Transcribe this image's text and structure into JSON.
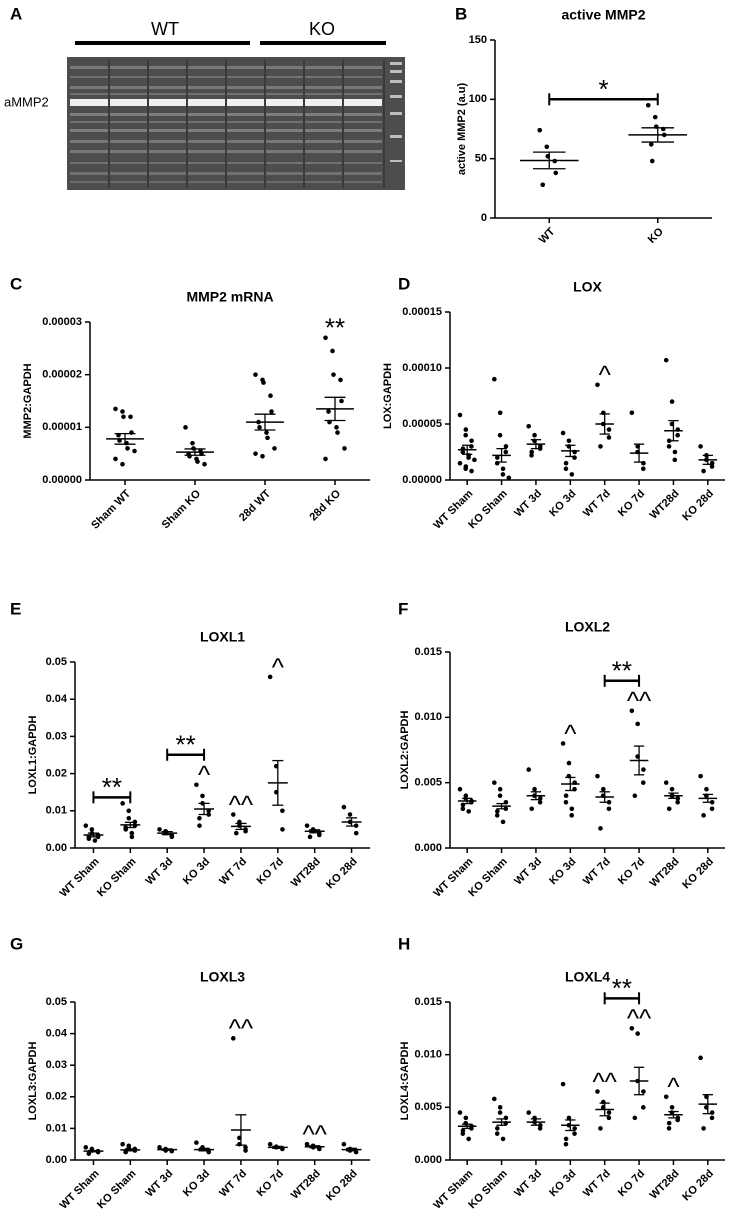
{
  "gel": {
    "panel": "A",
    "label": "aMMP2",
    "groups": [
      "WT",
      "KO"
    ]
  },
  "chart_data": [
    {
      "panel": "B",
      "type": "scatter",
      "title": "active MMP2",
      "ylabel": "active MMP2 (a.u)",
      "categories": [
        "WT",
        "KO"
      ],
      "points": [
        [
          74,
          60,
          52,
          48,
          38,
          28
        ],
        [
          95,
          85,
          77,
          75,
          70,
          62,
          48
        ]
      ],
      "means": [
        48.5,
        70
      ],
      "errors": [
        7,
        6
      ],
      "ylim": [
        0,
        150
      ],
      "yticks": [
        0,
        50,
        100,
        150
      ],
      "annotations": [
        {
          "text": "*",
          "categories": [
            "WT",
            "KO"
          ]
        }
      ]
    },
    {
      "panel": "C",
      "type": "scatter",
      "title": "MMP2 mRNA",
      "ylabel": "MMP2:GAPDH",
      "categories": [
        "Sham WT",
        "Sham KO",
        "28d WT",
        "28d KO"
      ],
      "points": [
        [
          1.35e-05,
          1.3e-05,
          1.2e-05,
          1.2e-05,
          9e-06,
          8.5e-06,
          7.5e-06,
          7e-06,
          6e-06,
          5.5e-06,
          4e-06,
          3e-06
        ],
        [
          1e-05,
          7e-06,
          6e-06,
          5.5e-06,
          5e-06,
          5e-06,
          4.5e-06,
          4e-06,
          3.5e-06,
          3e-06
        ],
        [
          2e-05,
          1.9e-05,
          1.85e-05,
          1.6e-05,
          1.3e-05,
          1.1e-05,
          1e-05,
          9e-06,
          8e-06,
          6e-06,
          5e-06,
          4.5e-06
        ],
        [
          2.7e-05,
          2.45e-05,
          2e-05,
          1.9e-05,
          1.5e-05,
          1.3e-05,
          1.1e-05,
          1e-05,
          9e-06,
          6e-06,
          4e-06
        ]
      ],
      "means": [
        7.8e-06,
        5.3e-06,
        1.1e-05,
        1.35e-05
      ],
      "errors": [
        1e-06,
        6e-07,
        1.5e-06,
        2.2e-06
      ],
      "ylim": [
        0,
        3e-05
      ],
      "yticks": [
        {
          "value": 0,
          "label": "0.00000"
        },
        1e-05,
        2e-05,
        3e-05
      ],
      "annotations": [
        {
          "text": "**",
          "categories": [
            "28d KO"
          ]
        }
      ]
    },
    {
      "panel": "D",
      "type": "scatter",
      "title": "LOX",
      "ylabel": "LOX:GAPDH",
      "categories": [
        "WT Sham",
        "KO Sham",
        "WT 3d",
        "KO 3d",
        "WT 7d",
        "KO 7d",
        "WT28d",
        "KO 28d"
      ],
      "points": [
        [
          5.8e-05,
          4.5e-05,
          4e-05,
          3.5e-05,
          3e-05,
          2.8e-05,
          2.5e-05,
          2.2e-05,
          2e-05,
          1.8e-05,
          1.5e-05,
          1.2e-05,
          1e-05,
          8e-06
        ],
        [
          9e-05,
          6e-05,
          4e-05,
          3e-05,
          2.5e-05,
          2e-05,
          1.5e-05,
          1e-05,
          5e-06,
          2e-06
        ],
        [
          4.8e-05,
          4e-05,
          3.5e-05,
          3e-05,
          2.8e-05,
          2.5e-05,
          2.2e-05
        ],
        [
          4.2e-05,
          3.5e-05,
          3e-05,
          2.5e-05,
          2e-05,
          1.5e-05,
          1e-05,
          5e-06
        ],
        [
          8.5e-05,
          6e-05,
          5e-05,
          4.5e-05,
          3.8e-05,
          3e-05
        ],
        [
          6e-05,
          3e-05,
          2.5e-05,
          1.5e-05,
          1e-05
        ],
        [
          0.000107,
          7e-05,
          5e-05,
          4.5e-05,
          4e-05,
          3.5e-05,
          3e-05,
          2.5e-05,
          1.8e-05
        ],
        [
          3e-05,
          2.2e-05,
          1.8e-05,
          1.5e-05,
          1.2e-05,
          8e-06
        ]
      ],
      "means": [
        2.7e-05,
        2.2e-05,
        3.2e-05,
        2.6e-05,
        5e-05,
        2.4e-05,
        4.4e-05,
        1.8e-05
      ],
      "errors": [
        4e-06,
        6e-06,
        4e-06,
        5e-06,
        9e-06,
        8e-06,
        9e-06,
        4e-06
      ],
      "ylim": [
        0,
        0.00015
      ],
      "yticks": [
        {
          "value": 0,
          "label": "0.00000"
        },
        5e-05,
        {
          "value": 0.0001,
          "label": "0.00010"
        },
        0.00015
      ],
      "annotations": [
        {
          "text": "^",
          "categories": [
            "WT 7d"
          ]
        }
      ]
    },
    {
      "panel": "E",
      "type": "scatter",
      "title": "LOXL1",
      "ylabel": "LOXL1:GAPDH",
      "categories": [
        "WT Sham",
        "KO Sham",
        "WT 3d",
        "KO 3d",
        "WT 7d",
        "KO 7d",
        "WT28d",
        "KO 28d"
      ],
      "points": [
        [
          0.006,
          0.005,
          0.004,
          0.0035,
          0.003,
          0.003,
          0.0025,
          0.002
        ],
        [
          0.012,
          0.01,
          0.008,
          0.007,
          0.006,
          0.0055,
          0.005,
          0.004,
          0.003
        ],
        [
          0.005,
          0.0045,
          0.004,
          0.0035,
          0.003
        ],
        [
          0.017,
          0.014,
          0.012,
          0.01,
          0.009,
          0.008,
          0.006
        ],
        [
          0.009,
          0.007,
          0.006,
          0.005,
          0.0045,
          0.004
        ],
        [
          0.046,
          0.022,
          0.015,
          0.01,
          0.005
        ],
        [
          0.006,
          0.005,
          0.0045,
          0.004,
          0.0035,
          0.003
        ],
        [
          0.011,
          0.009,
          0.007,
          0.006,
          0.004
        ]
      ],
      "means": [
        0.0035,
        0.0062,
        0.004,
        0.0105,
        0.0058,
        0.0175,
        0.0045,
        0.007
      ],
      "errors": [
        0.0005,
        0.0007,
        0.0004,
        0.0015,
        0.0008,
        0.006,
        0.0004,
        0.0011
      ],
      "ylim": [
        0,
        0.05
      ],
      "yticks": [
        {
          "value": 0,
          "label": "0.00"
        },
        0.01,
        0.02,
        0.03,
        0.04,
        0.05
      ],
      "annotations": [
        {
          "text": "^",
          "categories": [
            "KO 3d"
          ]
        },
        {
          "text": "^^",
          "categories": [
            "WT 7d"
          ]
        },
        {
          "text": "^",
          "categories": [
            "KO 7d"
          ]
        },
        {
          "text": "**",
          "categories": [
            "WT Sham",
            "KO Sham"
          ]
        },
        {
          "text": "**",
          "categories": [
            "WT 3d",
            "KO 3d"
          ]
        }
      ]
    },
    {
      "panel": "F",
      "type": "scatter",
      "title": "LOXL2",
      "ylabel": "LOXL2:GAPDH",
      "categories": [
        "WT Sham",
        "KO Sham",
        "WT 3d",
        "KO 3d",
        "WT 7d",
        "KO 7d",
        "WT28d",
        "KO 28d"
      ],
      "points": [
        [
          0.0045,
          0.004,
          0.0038,
          0.0036,
          0.0035,
          0.0033,
          0.003,
          0.0028
        ],
        [
          0.005,
          0.0045,
          0.004,
          0.0035,
          0.003,
          0.0028,
          0.0025,
          0.002
        ],
        [
          0.006,
          0.0045,
          0.004,
          0.0038,
          0.0035,
          0.003
        ],
        [
          0.008,
          0.0065,
          0.0055,
          0.005,
          0.0045,
          0.004,
          0.0035,
          0.003,
          0.0025
        ],
        [
          0.0055,
          0.0045,
          0.004,
          0.0035,
          0.003,
          0.0015
        ],
        [
          0.0105,
          0.0095,
          0.007,
          0.006,
          0.005,
          0.004
        ],
        [
          0.005,
          0.0045,
          0.004,
          0.0038,
          0.0035,
          0.003
        ],
        [
          0.0055,
          0.0045,
          0.004,
          0.0035,
          0.003,
          0.0025
        ]
      ],
      "means": [
        0.0036,
        0.0032,
        0.004,
        0.0049,
        0.0039,
        0.0067,
        0.004,
        0.0038
      ],
      "errors": [
        0.0002,
        0.0002,
        0.0003,
        0.0005,
        0.0004,
        0.0011,
        0.0002,
        0.0003
      ],
      "ylim": [
        0,
        0.015
      ],
      "yticks": [
        {
          "value": 0,
          "label": "0.000"
        },
        0.005,
        {
          "value": 0.01,
          "label": "0.010"
        },
        0.015
      ],
      "annotations": [
        {
          "text": "^",
          "categories": [
            "KO 3d"
          ]
        },
        {
          "text": "^^",
          "categories": [
            "KO 7d"
          ]
        },
        {
          "text": "**",
          "categories": [
            "WT 7d",
            "KO 7d"
          ]
        }
      ]
    },
    {
      "panel": "G",
      "type": "scatter",
      "title": "LOXL3",
      "ylabel": "LOXL3:GAPDH",
      "categories": [
        "WT Sham",
        "KO Sham",
        "WT 3d",
        "KO 3d",
        "WT 7d",
        "KO 7d",
        "WT28d",
        "KO 28d"
      ],
      "points": [
        [
          0.004,
          0.0035,
          0.003,
          0.0028,
          0.0025,
          0.002
        ],
        [
          0.005,
          0.0045,
          0.004,
          0.0035,
          0.003,
          0.0025
        ],
        [
          0.004,
          0.0035,
          0.003,
          0.0028
        ],
        [
          0.0055,
          0.004,
          0.0035,
          0.003,
          0.0025
        ],
        [
          0.0385,
          0.007,
          0.005,
          0.004,
          0.003
        ],
        [
          0.005,
          0.0042,
          0.004,
          0.0035
        ],
        [
          0.005,
          0.0045,
          0.004,
          0.0038,
          0.0035
        ],
        [
          0.005,
          0.0035,
          0.003,
          0.0025
        ]
      ],
      "means": [
        0.0028,
        0.0032,
        0.0033,
        0.0033,
        0.0095,
        0.004,
        0.0042,
        0.0033
      ],
      "errors": [
        0.0002,
        0.0003,
        0.0002,
        0.0004,
        0.0048,
        0.0003,
        0.0003,
        0.0004
      ],
      "ylim": [
        0,
        0.05
      ],
      "yticks": [
        {
          "value": 0,
          "label": "0.00"
        },
        0.01,
        0.02,
        0.03,
        0.04,
        0.05
      ],
      "annotations": [
        {
          "text": "^^",
          "categories": [
            "WT 7d"
          ]
        },
        {
          "text": "^^",
          "categories": [
            "WT28d"
          ]
        }
      ]
    },
    {
      "panel": "H",
      "type": "scatter",
      "title": "LOXL4",
      "ylabel": "LOXL4:GAPDH",
      "categories": [
        "WT Sham",
        "KO Sham",
        "WT 3d",
        "KO 3d",
        "WT 7d",
        "KO 7d",
        "WT28d",
        "KO 28d"
      ],
      "points": [
        [
          0.0045,
          0.004,
          0.0035,
          0.0032,
          0.003,
          0.0028,
          0.0025,
          0.002
        ],
        [
          0.0058,
          0.005,
          0.0045,
          0.004,
          0.0035,
          0.003,
          0.0025,
          0.002
        ],
        [
          0.0045,
          0.004,
          0.0036,
          0.0033,
          0.003
        ],
        [
          0.0072,
          0.004,
          0.0033,
          0.003,
          0.0025,
          0.002,
          0.0015
        ],
        [
          0.0065,
          0.0055,
          0.005,
          0.0045,
          0.004,
          0.003
        ],
        [
          0.0125,
          0.012,
          0.0075,
          0.0065,
          0.005,
          0.004
        ],
        [
          0.006,
          0.005,
          0.0045,
          0.004,
          0.0038,
          0.0035,
          0.003
        ],
        [
          0.0097,
          0.006,
          0.005,
          0.0045,
          0.004,
          0.003
        ]
      ],
      "means": [
        0.0032,
        0.0036,
        0.0036,
        0.0033,
        0.0048,
        0.0075,
        0.0043,
        0.0053
      ],
      "errors": [
        0.0002,
        0.0003,
        0.0003,
        0.0005,
        0.0006,
        0.0013,
        0.0003,
        0.0009
      ],
      "ylim": [
        0,
        0.015
      ],
      "yticks": [
        {
          "value": 0,
          "label": "0.000"
        },
        0.005,
        {
          "value": 0.01,
          "label": "0.010"
        },
        0.015
      ],
      "annotations": [
        {
          "text": "^^",
          "categories": [
            "WT 7d"
          ]
        },
        {
          "text": "^^",
          "categories": [
            "KO 7d"
          ]
        },
        {
          "text": "^",
          "categories": [
            "WT28d"
          ]
        },
        {
          "text": "**",
          "categories": [
            "WT 7d",
            "KO 7d"
          ]
        }
      ]
    }
  ]
}
